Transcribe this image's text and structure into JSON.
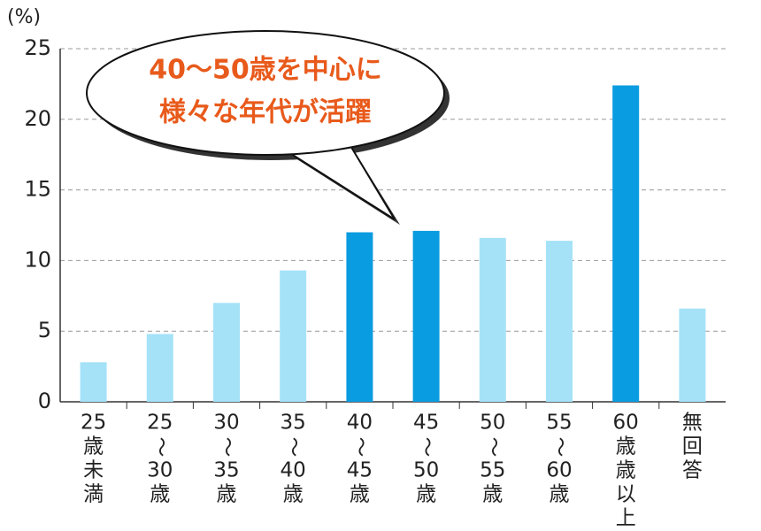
{
  "chart_data": {
    "type": "bar",
    "y_label": "(%)",
    "annotation": [
      "40〜50歳を中心に",
      "様々な年代が活躍"
    ],
    "categories": [
      [
        "25",
        "歳",
        "未",
        "満"
      ],
      [
        "25",
        "〜",
        "30",
        "歳"
      ],
      [
        "30",
        "〜",
        "35",
        "歳"
      ],
      [
        "35",
        "〜",
        "40",
        "歳"
      ],
      [
        "40",
        "〜",
        "45",
        "歳"
      ],
      [
        "45",
        "〜",
        "50",
        "歳"
      ],
      [
        "50",
        "〜",
        "55",
        "歳"
      ],
      [
        "55",
        "〜",
        "60",
        "歳"
      ],
      [
        "60",
        "歳",
        "歳",
        "以",
        "上"
      ],
      [
        "無",
        "回",
        "答"
      ]
    ],
    "values": [
      2.8,
      4.8,
      7.0,
      9.3,
      12.0,
      12.1,
      11.6,
      11.4,
      22.4,
      6.6
    ],
    "colors": [
      "#a5e2f8",
      "#a5e2f8",
      "#a5e2f8",
      "#a5e2f8",
      "#0a9ce0",
      "#0a9ce0",
      "#a5e2f8",
      "#a5e2f8",
      "#0a9ce0",
      "#a5e2f8"
    ],
    "ylim": [
      0,
      25
    ],
    "yticks": [
      0,
      5,
      10,
      15,
      20,
      25
    ],
    "grid": true
  }
}
